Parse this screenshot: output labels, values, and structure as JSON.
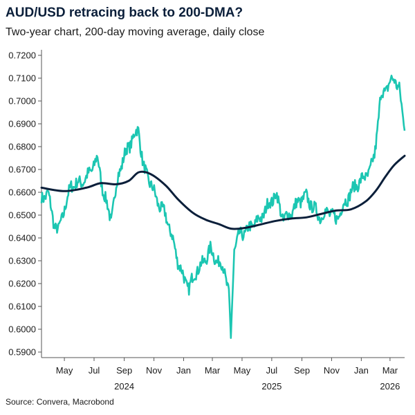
{
  "title": "AUD/USD retracing back to 200-DMA?",
  "subtitle": "Two-year chart, 200-day moving average, daily close",
  "source": "Source: Convera, Macrobond",
  "colors": {
    "price": "#1cc6b2",
    "dma": "#0b1f3a",
    "axis": "#555555"
  },
  "chart_data": {
    "type": "line",
    "title": "AUD/USD retracing back to 200-DMA?",
    "subtitle": "Two-year chart, 200-day moving average, daily close",
    "ylim": [
      0.59,
      0.72
    ],
    "y_ticks": [
      "0.7200",
      "0.7100",
      "0.7000",
      "0.6900",
      "0.6800",
      "0.6700",
      "0.6600",
      "0.6500",
      "0.6400",
      "0.6300",
      "0.6200",
      "0.6100",
      "0.6000",
      "0.5900"
    ],
    "x_range": [
      "2024-03-15",
      "2026-03-31"
    ],
    "x_ticks": [
      {
        "date": "2024-05-01",
        "label": "May"
      },
      {
        "date": "2024-07-01",
        "label": "Jul"
      },
      {
        "date": "2024-09-01",
        "label": "Sep"
      },
      {
        "date": "2024-11-01",
        "label": "Nov"
      },
      {
        "date": "2025-01-01",
        "label": "Jan"
      },
      {
        "date": "2025-03-01",
        "label": "Mar"
      },
      {
        "date": "2025-05-01",
        "label": "May"
      },
      {
        "date": "2025-07-01",
        "label": "Jul"
      },
      {
        "date": "2025-09-01",
        "label": "Sep"
      },
      {
        "date": "2025-11-01",
        "label": "Nov"
      },
      {
        "date": "2026-01-01",
        "label": "Jan"
      },
      {
        "date": "2026-03-01",
        "label": "Mar"
      }
    ],
    "year_labels": [
      {
        "date": "2024-09-01",
        "label": "2024"
      },
      {
        "date": "2025-07-01",
        "label": "2025"
      },
      {
        "date": "2026-03-01",
        "label": "2026"
      }
    ],
    "grid": false,
    "series": [
      {
        "id": "price",
        "x": [
          "2024-03-15",
          "2024-03-28",
          "2024-04-10",
          "2024-04-19",
          "2024-04-30",
          "2024-05-15",
          "2024-05-31",
          "2024-06-15",
          "2024-07-08",
          "2024-07-20",
          "2024-08-05",
          "2024-08-20",
          "2024-09-05",
          "2024-09-30",
          "2024-10-10",
          "2024-10-25",
          "2024-11-10",
          "2024-11-25",
          "2024-12-10",
          "2024-12-20",
          "2025-01-02",
          "2025-01-12",
          "2025-01-25",
          "2025-02-10",
          "2025-02-25",
          "2025-03-10",
          "2025-03-25",
          "2025-04-04",
          "2025-04-08",
          "2025-04-15",
          "2025-04-25",
          "2025-05-10",
          "2025-05-25",
          "2025-06-10",
          "2025-06-25",
          "2025-07-10",
          "2025-07-25",
          "2025-08-10",
          "2025-08-25",
          "2025-09-10",
          "2025-09-25",
          "2025-10-10",
          "2025-10-25",
          "2025-11-10",
          "2025-11-25",
          "2025-12-10",
          "2025-12-25",
          "2026-01-10",
          "2026-01-20",
          "2026-01-28",
          "2026-02-10",
          "2026-02-20",
          "2026-03-01",
          "2026-03-10",
          "2026-03-20",
          "2026-03-31"
        ],
        "y": [
          0.657,
          0.66,
          0.646,
          0.643,
          0.652,
          0.663,
          0.664,
          0.666,
          0.675,
          0.66,
          0.648,
          0.668,
          0.678,
          0.688,
          0.671,
          0.664,
          0.655,
          0.65,
          0.639,
          0.63,
          0.622,
          0.618,
          0.625,
          0.629,
          0.635,
          0.63,
          0.627,
          0.615,
          0.596,
          0.635,
          0.641,
          0.643,
          0.646,
          0.649,
          0.655,
          0.659,
          0.648,
          0.651,
          0.656,
          0.658,
          0.653,
          0.649,
          0.652,
          0.648,
          0.654,
          0.66,
          0.664,
          0.667,
          0.67,
          0.676,
          0.702,
          0.705,
          0.708,
          0.71,
          0.705,
          0.687
        ]
      },
      {
        "id": "dma",
        "x": [
          "2024-03-15",
          "2024-05-01",
          "2024-06-15",
          "2024-07-15",
          "2024-08-15",
          "2024-09-10",
          "2024-10-01",
          "2024-10-25",
          "2024-11-25",
          "2024-12-20",
          "2025-01-20",
          "2025-02-15",
          "2025-03-15",
          "2025-04-10",
          "2025-05-10",
          "2025-06-10",
          "2025-07-10",
          "2025-08-10",
          "2025-09-10",
          "2025-10-10",
          "2025-11-10",
          "2025-12-10",
          "2026-01-10",
          "2026-02-01",
          "2026-02-20",
          "2026-03-10",
          "2026-03-31"
        ],
        "y": [
          0.662,
          0.6605,
          0.662,
          0.664,
          0.6635,
          0.665,
          0.6688,
          0.668,
          0.663,
          0.657,
          0.651,
          0.648,
          0.646,
          0.644,
          0.6445,
          0.646,
          0.6475,
          0.6485,
          0.649,
          0.6505,
          0.652,
          0.6525,
          0.656,
          0.661,
          0.667,
          0.672,
          0.676
        ]
      }
    ]
  }
}
